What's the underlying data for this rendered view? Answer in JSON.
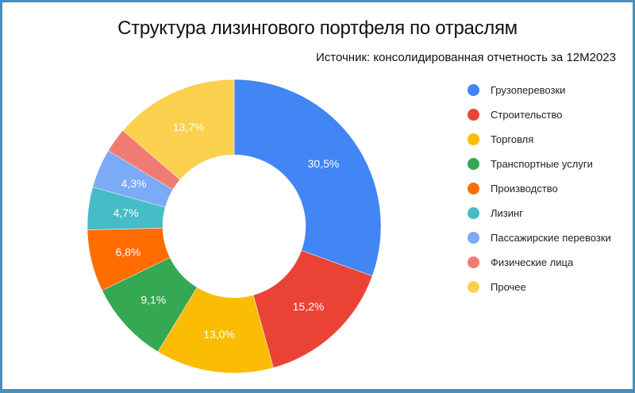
{
  "header": {
    "title": "Структура лизингового портфеля по отраслям",
    "subtitle": "Источник: консолидированная отчетность за 12М2023"
  },
  "frame": {
    "border_color": "#4a8fba",
    "background": "#ffffff"
  },
  "chart_data": {
    "type": "pie",
    "variant": "donut",
    "title": "Структура лизингового портфеля по отраслям",
    "subtitle": "Источник: консолидированная отчетность за 12М2023",
    "unit": "%",
    "start_angle_deg": 0,
    "direction": "clockwise",
    "legend_position": "right",
    "categories": [
      "Грузоперевозки",
      "Строительство",
      "Торговля",
      "Транспортные услуги",
      "Производство",
      "Лизинг",
      "Пассажирские перевозки",
      "Физические лица",
      "Прочее"
    ],
    "values": [
      30.5,
      15.2,
      13.0,
      9.1,
      6.8,
      4.7,
      4.3,
      2.7,
      13.7
    ],
    "labels": [
      "30,5%",
      "15,2%",
      "13,0%",
      "9,1%",
      "6,8%",
      "4,7%",
      "4,3%",
      "",
      "13,7%"
    ],
    "colors": [
      "#4285f4",
      "#ea4335",
      "#fbbc04",
      "#34a853",
      "#ff6d01",
      "#46bdc6",
      "#7baaf7",
      "#f07b72",
      "#fcd04f"
    ]
  }
}
